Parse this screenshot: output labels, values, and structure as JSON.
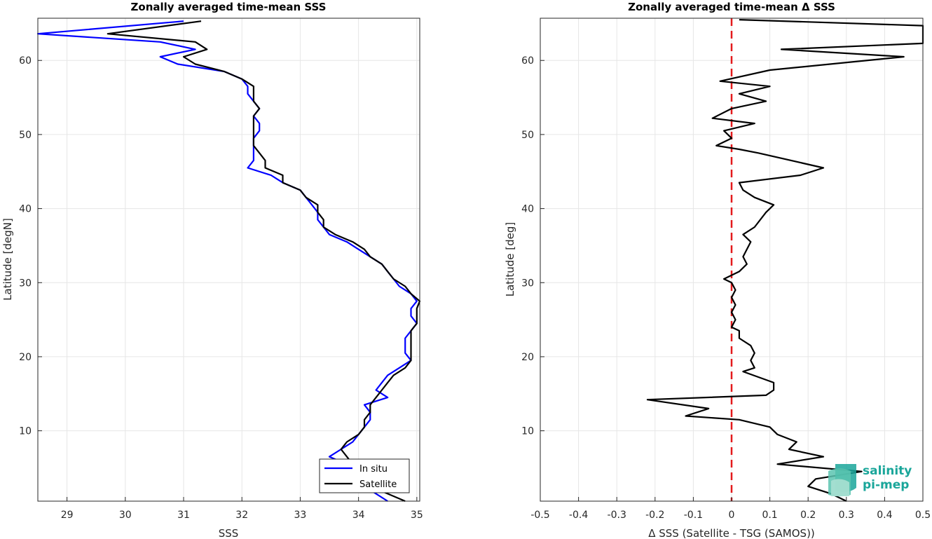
{
  "chart_data": [
    {
      "type": "line",
      "title": "Zonally averaged time-mean SSS",
      "xlabel": "SSS",
      "ylabel": "Latitude [degN]",
      "xlim": [
        28.5,
        35.05
      ],
      "ylim": [
        0.5,
        65.7
      ],
      "xticks": [
        "29",
        "30",
        "31",
        "32",
        "33",
        "34",
        "35"
      ],
      "yticks": [
        "10",
        "20",
        "30",
        "40",
        "50",
        "60"
      ],
      "grid": true,
      "legend_position": "bottom-right",
      "series": [
        {
          "name": "In situ",
          "color": "#0000ff",
          "points": [
            [
              31.0,
              65.3
            ],
            [
              28.5,
              63.6
            ],
            [
              30.6,
              62.5
            ],
            [
              31.2,
              61.5
            ],
            [
              30.6,
              60.5
            ],
            [
              30.9,
              59.5
            ],
            [
              31.7,
              58.5
            ],
            [
              32.0,
              57.5
            ],
            [
              32.1,
              56.5
            ],
            [
              32.1,
              55.5
            ],
            [
              32.2,
              54.5
            ],
            [
              32.3,
              53.5
            ],
            [
              32.2,
              52.5
            ],
            [
              32.3,
              51.5
            ],
            [
              32.3,
              50.5
            ],
            [
              32.2,
              49.5
            ],
            [
              32.2,
              48.5
            ],
            [
              32.2,
              47.5
            ],
            [
              32.2,
              46.5
            ],
            [
              32.1,
              45.5
            ],
            [
              32.5,
              44.5
            ],
            [
              32.7,
              43.5
            ],
            [
              33.0,
              42.5
            ],
            [
              33.1,
              41.5
            ],
            [
              33.2,
              40.5
            ],
            [
              33.3,
              39.5
            ],
            [
              33.3,
              38.5
            ],
            [
              33.4,
              37.5
            ],
            [
              33.5,
              36.5
            ],
            [
              33.8,
              35.5
            ],
            [
              34.0,
              34.5
            ],
            [
              34.2,
              33.5
            ],
            [
              34.4,
              32.5
            ],
            [
              34.5,
              31.5
            ],
            [
              34.6,
              30.5
            ],
            [
              34.7,
              29.5
            ],
            [
              34.9,
              28.5
            ],
            [
              35.0,
              27.5
            ],
            [
              34.9,
              26.5
            ],
            [
              34.9,
              25.5
            ],
            [
              35.0,
              24.5
            ],
            [
              34.9,
              23.5
            ],
            [
              34.8,
              22.5
            ],
            [
              34.8,
              21.5
            ],
            [
              34.8,
              20.5
            ],
            [
              34.9,
              19.5
            ],
            [
              34.7,
              18.5
            ],
            [
              34.5,
              17.5
            ],
            [
              34.4,
              16.5
            ],
            [
              34.3,
              15.5
            ],
            [
              34.5,
              14.5
            ],
            [
              34.1,
              13.5
            ],
            [
              34.2,
              12.5
            ],
            [
              34.2,
              11.5
            ],
            [
              34.1,
              10.5
            ],
            [
              34.0,
              9.5
            ],
            [
              33.9,
              8.5
            ],
            [
              33.7,
              7.5
            ],
            [
              33.5,
              6.5
            ],
            [
              33.8,
              5.5
            ],
            [
              33.9,
              4.5
            ],
            [
              34.0,
              3.5
            ],
            [
              34.1,
              2.5
            ],
            [
              34.3,
              1.5
            ],
            [
              34.5,
              0.5
            ]
          ]
        },
        {
          "name": "Satellite",
          "color": "#000000",
          "points": [
            [
              31.3,
              65.3
            ],
            [
              29.7,
              63.6
            ],
            [
              31.2,
              62.5
            ],
            [
              31.4,
              61.5
            ],
            [
              31.0,
              60.5
            ],
            [
              31.2,
              59.5
            ],
            [
              31.7,
              58.5
            ],
            [
              32.0,
              57.5
            ],
            [
              32.2,
              56.5
            ],
            [
              32.2,
              55.5
            ],
            [
              32.2,
              54.5
            ],
            [
              32.3,
              53.5
            ],
            [
              32.2,
              52.5
            ],
            [
              32.2,
              51.5
            ],
            [
              32.2,
              50.5
            ],
            [
              32.2,
              49.5
            ],
            [
              32.2,
              48.5
            ],
            [
              32.3,
              47.5
            ],
            [
              32.4,
              46.5
            ],
            [
              32.4,
              45.5
            ],
            [
              32.7,
              44.5
            ],
            [
              32.7,
              43.5
            ],
            [
              33.0,
              42.5
            ],
            [
              33.1,
              41.5
            ],
            [
              33.3,
              40.5
            ],
            [
              33.3,
              39.5
            ],
            [
              33.4,
              38.5
            ],
            [
              33.4,
              37.5
            ],
            [
              33.6,
              36.5
            ],
            [
              33.9,
              35.5
            ],
            [
              34.1,
              34.5
            ],
            [
              34.2,
              33.5
            ],
            [
              34.4,
              32.5
            ],
            [
              34.5,
              31.5
            ],
            [
              34.6,
              30.5
            ],
            [
              34.8,
              29.5
            ],
            [
              34.9,
              28.5
            ],
            [
              35.05,
              27.5
            ],
            [
              35.0,
              26.5
            ],
            [
              35.0,
              25.5
            ],
            [
              35.0,
              24.5
            ],
            [
              34.9,
              23.5
            ],
            [
              34.9,
              22.5
            ],
            [
              34.9,
              21.5
            ],
            [
              34.9,
              20.5
            ],
            [
              34.9,
              19.5
            ],
            [
              34.8,
              18.5
            ],
            [
              34.6,
              17.5
            ],
            [
              34.5,
              16.5
            ],
            [
              34.4,
              15.5
            ],
            [
              34.3,
              14.5
            ],
            [
              34.2,
              13.5
            ],
            [
              34.2,
              12.5
            ],
            [
              34.1,
              11.5
            ],
            [
              34.1,
              10.5
            ],
            [
              34.0,
              9.5
            ],
            [
              33.8,
              8.5
            ],
            [
              33.7,
              7.5
            ],
            [
              33.8,
              6.5
            ],
            [
              33.9,
              5.5
            ],
            [
              33.9,
              4.5
            ],
            [
              33.9,
              3.5
            ],
            [
              34.2,
              2.5
            ],
            [
              34.5,
              1.5
            ],
            [
              34.8,
              0.5
            ]
          ]
        }
      ]
    },
    {
      "type": "line",
      "title": "Zonally averaged time-mean Δ SSS",
      "xlabel": "Δ SSS (Satellite - TSG (SAMOS))",
      "ylabel": "Latitude [deg]",
      "xlim": [
        -0.5,
        0.5
      ],
      "ylim": [
        0.5,
        65.7
      ],
      "xticks": [
        "-0.5",
        "-0.4",
        "-0.3",
        "-0.2",
        "-0.1",
        "0",
        "0.1",
        "0.2",
        "0.3",
        "0.4",
        "0.5"
      ],
      "yticks": [
        "10",
        "20",
        "30",
        "40",
        "50",
        "60"
      ],
      "grid": true,
      "reference_line": {
        "x": 0,
        "color": "#e31a1c",
        "style": "dashed"
      },
      "series": [
        {
          "color": "#000000",
          "points": [
            [
              0.02,
              65.5
            ],
            [
              0.5,
              64.7
            ],
            [
              0.5,
              62.3
            ],
            [
              0.13,
              61.5
            ],
            [
              0.45,
              60.5
            ],
            [
              0.1,
              58.7
            ],
            [
              -0.03,
              57.2
            ],
            [
              0.1,
              56.5
            ],
            [
              0.02,
              55.5
            ],
            [
              0.09,
              54.5
            ],
            [
              0.0,
              53.5
            ],
            [
              -0.05,
              52.2
            ],
            [
              0.06,
              51.5
            ],
            [
              -0.02,
              50.5
            ],
            [
              0.0,
              49.5
            ],
            [
              -0.04,
              48.5
            ],
            [
              0.02,
              48.0
            ],
            [
              0.07,
              47.5
            ],
            [
              0.24,
              45.5
            ],
            [
              0.18,
              44.5
            ],
            [
              0.02,
              43.5
            ],
            [
              0.03,
              42.5
            ],
            [
              0.06,
              41.5
            ],
            [
              0.11,
              40.5
            ],
            [
              0.09,
              39.5
            ],
            [
              0.06,
              37.5
            ],
            [
              0.03,
              36.5
            ],
            [
              0.05,
              35.5
            ],
            [
              0.04,
              34.5
            ],
            [
              0.03,
              33.5
            ],
            [
              0.04,
              32.5
            ],
            [
              0.02,
              31.5
            ],
            [
              -0.02,
              30.5
            ],
            [
              0.0,
              30.0
            ],
            [
              0.01,
              29.0
            ],
            [
              0.0,
              28.0
            ],
            [
              0.01,
              27.0
            ],
            [
              0.0,
              26.0
            ],
            [
              0.01,
              25.0
            ],
            [
              0.0,
              24.0
            ],
            [
              0.02,
              23.5
            ],
            [
              0.02,
              22.5
            ],
            [
              0.05,
              21.5
            ],
            [
              0.06,
              20.5
            ],
            [
              0.05,
              19.5
            ],
            [
              0.06,
              18.5
            ],
            [
              0.03,
              18.0
            ],
            [
              0.11,
              16.5
            ],
            [
              0.11,
              15.5
            ],
            [
              0.09,
              14.8
            ],
            [
              -0.22,
              14.2
            ],
            [
              -0.06,
              13.0
            ],
            [
              -0.12,
              12.0
            ],
            [
              0.02,
              11.5
            ],
            [
              0.1,
              10.5
            ],
            [
              0.12,
              9.5
            ],
            [
              0.17,
              8.5
            ],
            [
              0.15,
              7.5
            ],
            [
              0.24,
              6.5
            ],
            [
              0.12,
              5.5
            ],
            [
              0.34,
              4.5
            ],
            [
              0.22,
              3.5
            ],
            [
              0.2,
              2.5
            ],
            [
              0.26,
              1.5
            ],
            [
              0.3,
              0.5
            ]
          ]
        }
      ]
    }
  ],
  "legend": [
    {
      "label": "In situ",
      "color": "#0000ff"
    },
    {
      "label": "Satellite",
      "color": "#000000"
    }
  ],
  "logo": {
    "line1": "salinity",
    "line2": "pi-mep",
    "color": "#1aa69a"
  }
}
